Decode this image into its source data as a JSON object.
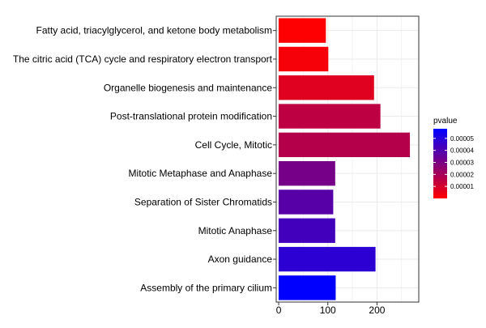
{
  "chart_data": {
    "type": "bar",
    "orientation": "horizontal",
    "categories": [
      "Fatty acid, triacylglycerol, and ketone body metabolism",
      "The citric acid (TCA) cycle and respiratory electron transport",
      "Organelle biogenesis and maintenance",
      "Post-translational protein modification",
      "Cell Cycle, Mitotic",
      "Mitotic Metaphase and Anaphase",
      "Separation of Sister Chromatids",
      "Mitotic Anaphase",
      "Axon guidance",
      "Assembly of the primary cilium"
    ],
    "values": [
      96,
      101,
      194,
      207,
      267,
      115,
      111,
      115,
      197,
      116
    ],
    "pvalues": [
      3e-07,
      2e-06,
      7e-06,
      1.5e-05,
      1.7e-05,
      3.1e-05,
      3.8e-05,
      4.3e-05,
      4.8e-05,
      5.8e-05
    ],
    "xlim": [
      -5,
      285
    ],
    "x_ticks": [
      0,
      100,
      200
    ],
    "x_tick_labels": [
      "0",
      "100",
      "200"
    ],
    "grid": true,
    "legend": {
      "title": "pvalue",
      "placement": "right",
      "ticks": [
        1e-05,
        2e-05,
        3e-05,
        4e-05,
        5e-05
      ],
      "tick_labels": [
        "0.00001",
        "0.00002",
        "0.00003",
        "0.00004",
        "0.00005"
      ],
      "range": [
        0,
        5.8e-05
      ],
      "low_color": "#ff0000",
      "high_color": "#0000ff"
    },
    "colors": {
      "panel_border": "#333333",
      "grid": "#ebebeb",
      "background": "#ffffff"
    }
  }
}
